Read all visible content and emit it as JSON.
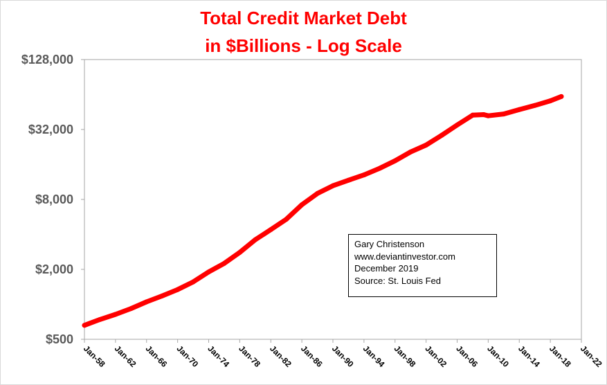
{
  "chart_data": {
    "type": "line",
    "title": "Total Credit Market Debt",
    "subtitle": "in $Billions - Log Scale",
    "scale": "log2",
    "ylim": [
      500,
      128000
    ],
    "y_ticks": [
      {
        "value": 500,
        "label": "$500"
      },
      {
        "value": 2000,
        "label": "$2,000"
      },
      {
        "value": 8000,
        "label": "$8,000"
      },
      {
        "value": 32000,
        "label": "$32,000"
      },
      {
        "value": 128000,
        "label": "$128,000"
      }
    ],
    "xlim": [
      "1958-01",
      "2022-01"
    ],
    "x_ticks": [
      "Jan-58",
      "Jan-62",
      "Jan-66",
      "Jan-70",
      "Jan-74",
      "Jan-78",
      "Jan-82",
      "Jan-86",
      "Jan-90",
      "Jan-94",
      "Jan-98",
      "Jan-02",
      "Jan-06",
      "Jan-10",
      "Jan-14",
      "Jan-18",
      "Jan-22"
    ],
    "series": [
      {
        "color": "#ff0000",
        "points": [
          {
            "x": "1958-01",
            "y": 660
          },
          {
            "x": "1960-01",
            "y": 740
          },
          {
            "x": "1962-01",
            "y": 820
          },
          {
            "x": "1964-01",
            "y": 920
          },
          {
            "x": "1966-01",
            "y": 1050
          },
          {
            "x": "1968-01",
            "y": 1180
          },
          {
            "x": "1970-01",
            "y": 1340
          },
          {
            "x": "1972-01",
            "y": 1560
          },
          {
            "x": "1974-01",
            "y": 1900
          },
          {
            "x": "1976-01",
            "y": 2250
          },
          {
            "x": "1978-01",
            "y": 2800
          },
          {
            "x": "1980-01",
            "y": 3600
          },
          {
            "x": "1982-01",
            "y": 4400
          },
          {
            "x": "1984-01",
            "y": 5400
          },
          {
            "x": "1986-01",
            "y": 7200
          },
          {
            "x": "1988-01",
            "y": 9000
          },
          {
            "x": "1990-01",
            "y": 10500
          },
          {
            "x": "1992-01",
            "y": 11700
          },
          {
            "x": "1994-01",
            "y": 13000
          },
          {
            "x": "1996-01",
            "y": 14800
          },
          {
            "x": "1998-01",
            "y": 17200
          },
          {
            "x": "2000-01",
            "y": 20500
          },
          {
            "x": "2002-01",
            "y": 23500
          },
          {
            "x": "2004-01",
            "y": 28500
          },
          {
            "x": "2006-01",
            "y": 35000
          },
          {
            "x": "2008-01",
            "y": 42500
          },
          {
            "x": "2009-06",
            "y": 43000
          },
          {
            "x": "2010-01",
            "y": 42000
          },
          {
            "x": "2012-01",
            "y": 43500
          },
          {
            "x": "2014-01",
            "y": 47500
          },
          {
            "x": "2016-01",
            "y": 51500
          },
          {
            "x": "2018-01",
            "y": 56500
          },
          {
            "x": "2019-06",
            "y": 61500
          }
        ]
      }
    ],
    "annotation": [
      "Gary Christenson",
      "www.deviantinvestor.com",
      "December 2019",
      "Source: St. Louis Fed"
    ],
    "grid": false,
    "legend": "none"
  }
}
